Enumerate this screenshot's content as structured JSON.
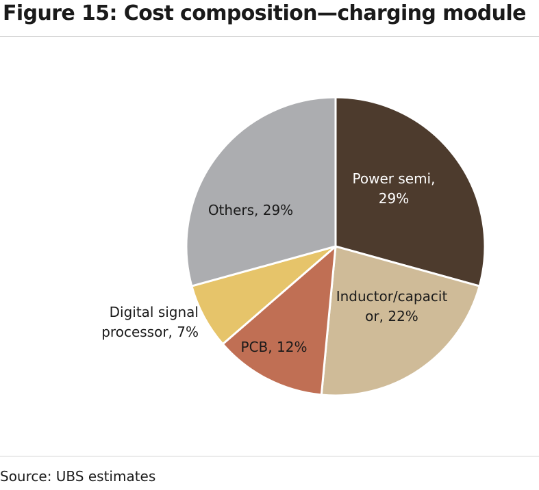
{
  "title": "Figure 15: Cost composition—charging module",
  "source": "Source: UBS estimates",
  "chart_data": {
    "type": "pie",
    "title": "Figure 15: Cost composition—charging module",
    "start_angle_deg": 0,
    "direction": "clockwise",
    "slices": [
      {
        "label": "Power semi",
        "value": 29,
        "color": "#4d3b2d",
        "text_color": "#ffffff",
        "label_lines": [
          "Power semi,",
          "29%"
        ]
      },
      {
        "label": "Inductor/capacitor",
        "value": 22,
        "color": "#cfbb98",
        "text_color": "#1a1a1a",
        "label_lines": [
          "Inductor/capacit",
          "or, 22%"
        ]
      },
      {
        "label": "PCB",
        "value": 12,
        "color": "#c06f54",
        "text_color": "#1a1a1a",
        "label_lines": [
          "PCB, 12%"
        ]
      },
      {
        "label": "Digital signal processor",
        "value": 7,
        "color": "#e6c46a",
        "text_color": "#1a1a1a",
        "label_lines": [
          "Digital signal",
          "processor, 7%"
        ]
      },
      {
        "label": "Others",
        "value": 29,
        "color": "#acadb0",
        "text_color": "#1a1a1a",
        "label_lines": [
          "Others, 29%"
        ]
      }
    ]
  }
}
